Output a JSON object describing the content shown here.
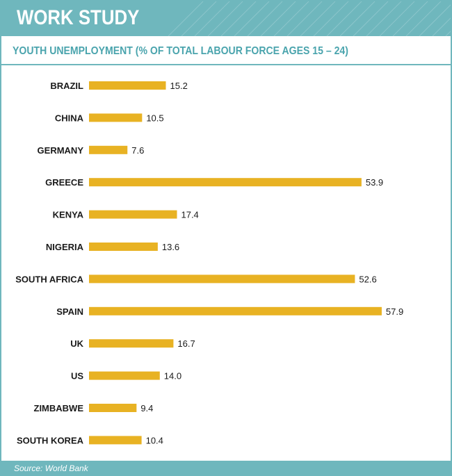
{
  "header": {
    "title": "WORK STUDY"
  },
  "colors": {
    "accent": "#6fb7bd",
    "subtitle": "#4aa4ad",
    "bar": "#e8b223",
    "label": "#1a1a1a"
  },
  "chart_data": {
    "type": "bar",
    "orientation": "horizontal",
    "title": "YOUTH UNEMPLOYMENT (% OF TOTAL LABOUR FORCE AGES 15 – 24)",
    "categories": [
      "BRAZIL",
      "CHINA",
      "GERMANY",
      "GREECE",
      "KENYA",
      "NIGERIA",
      "SOUTH AFRICA",
      "SPAIN",
      "UK",
      "US",
      "ZIMBABWE",
      "SOUTH KOREA"
    ],
    "values": [
      15.2,
      10.5,
      7.6,
      53.9,
      17.4,
      13.6,
      52.6,
      57.9,
      16.7,
      14.0,
      9.4,
      10.4
    ],
    "value_labels": [
      "15.2",
      "10.5",
      "7.6",
      "53.9",
      "17.4",
      "13.6",
      "52.6",
      "57.9",
      "16.7",
      "14.0",
      "9.4",
      "10.4"
    ],
    "xlim": [
      0,
      60
    ],
    "grid": false,
    "legend": "none"
  },
  "footer": {
    "source": "Source: World Bank"
  }
}
